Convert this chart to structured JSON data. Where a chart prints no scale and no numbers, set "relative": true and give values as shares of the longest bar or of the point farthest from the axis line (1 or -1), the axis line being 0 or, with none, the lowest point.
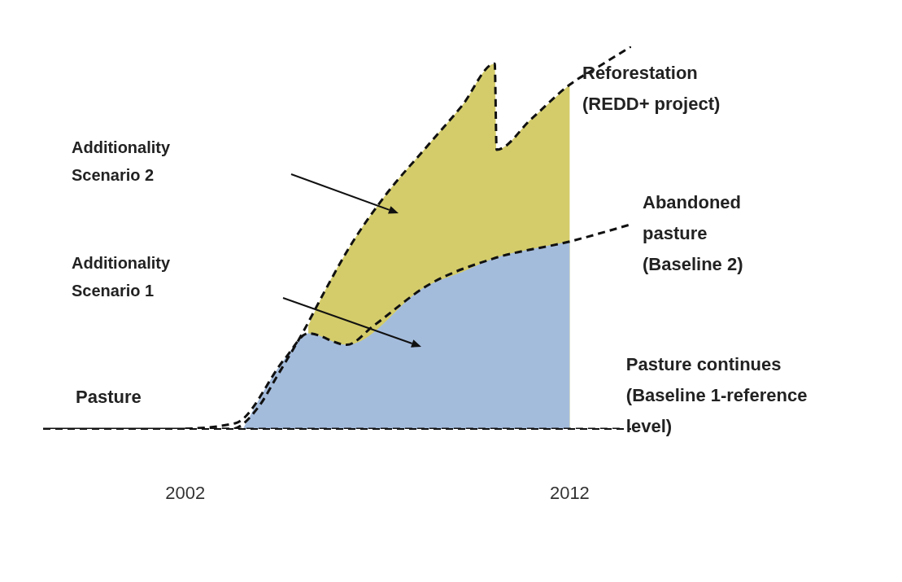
{
  "chart_data": {
    "type": "line",
    "relative": true,
    "xlim": [
      1998.3,
      2013.6
    ],
    "xticks": [
      2002,
      2012
    ],
    "line_style": "dashed",
    "marker": "none",
    "series": [
      {
        "name": "Pasture",
        "line_style": "solid",
        "color": "#111111",
        "x": [
          1998.3,
          2002
        ],
        "values": [
          0,
          0
        ]
      },
      {
        "name": "Pasture continues (Baseline 1-reference level)",
        "color": "#111111",
        "x": [
          2002,
          2013.3
        ],
        "values": [
          0,
          0
        ]
      },
      {
        "type": "area",
        "color": "#d4cc6a",
        "x": [
          2005.2,
          2005.6,
          2006.3,
          2007.2,
          2008.3,
          2009.2,
          2010.05,
          2010.1,
          2011,
          2012
        ],
        "values": [
          0.27,
          0.355,
          0.48,
          0.61,
          0.74,
          0.845,
          0.955,
          0.73,
          0.81,
          0.9
        ]
      },
      {
        "type": "area",
        "color": "#a4bcdc",
        "x": [
          2003.5,
          2004.6,
          2005.2,
          2006.2,
          2008.3,
          2009.2,
          2010,
          2011,
          2012
        ],
        "values": [
          0,
          0.185,
          0.25,
          0.22,
          0.375,
          0.41,
          0.445,
          0.47,
          0.49
        ]
      },
      {
        "name": "Abandoned pasture (Baseline 2)",
        "color": "#111111",
        "x": [
          2002,
          2003.3,
          2004.6,
          2005.2,
          2006.2,
          2006.9,
          2008.3,
          2010,
          2012,
          2013.6
        ],
        "values": [
          0,
          0.015,
          0.185,
          0.25,
          0.22,
          0.27,
          0.375,
          0.445,
          0.49,
          0.535
        ]
      },
      {
        "name": "Reforestation (REDD+ project)",
        "color": "#111111",
        "x": [
          2002,
          2003.2,
          2003.9,
          2004.4,
          2005.1,
          2005.6,
          2006.3,
          2007.2,
          2008.3,
          2009.2,
          2010.05,
          2010.1,
          2011,
          2012,
          2012.8,
          2013.6
        ],
        "values": [
          0,
          0,
          0.057,
          0.14,
          0.26,
          0.355,
          0.48,
          0.61,
          0.74,
          0.845,
          0.955,
          0.73,
          0.81,
          0.9,
          0.95,
          1.0
        ]
      }
    ],
    "annotations": [
      "Additionality Scenario 2",
      "Additionality Scenario 1"
    ]
  }
}
